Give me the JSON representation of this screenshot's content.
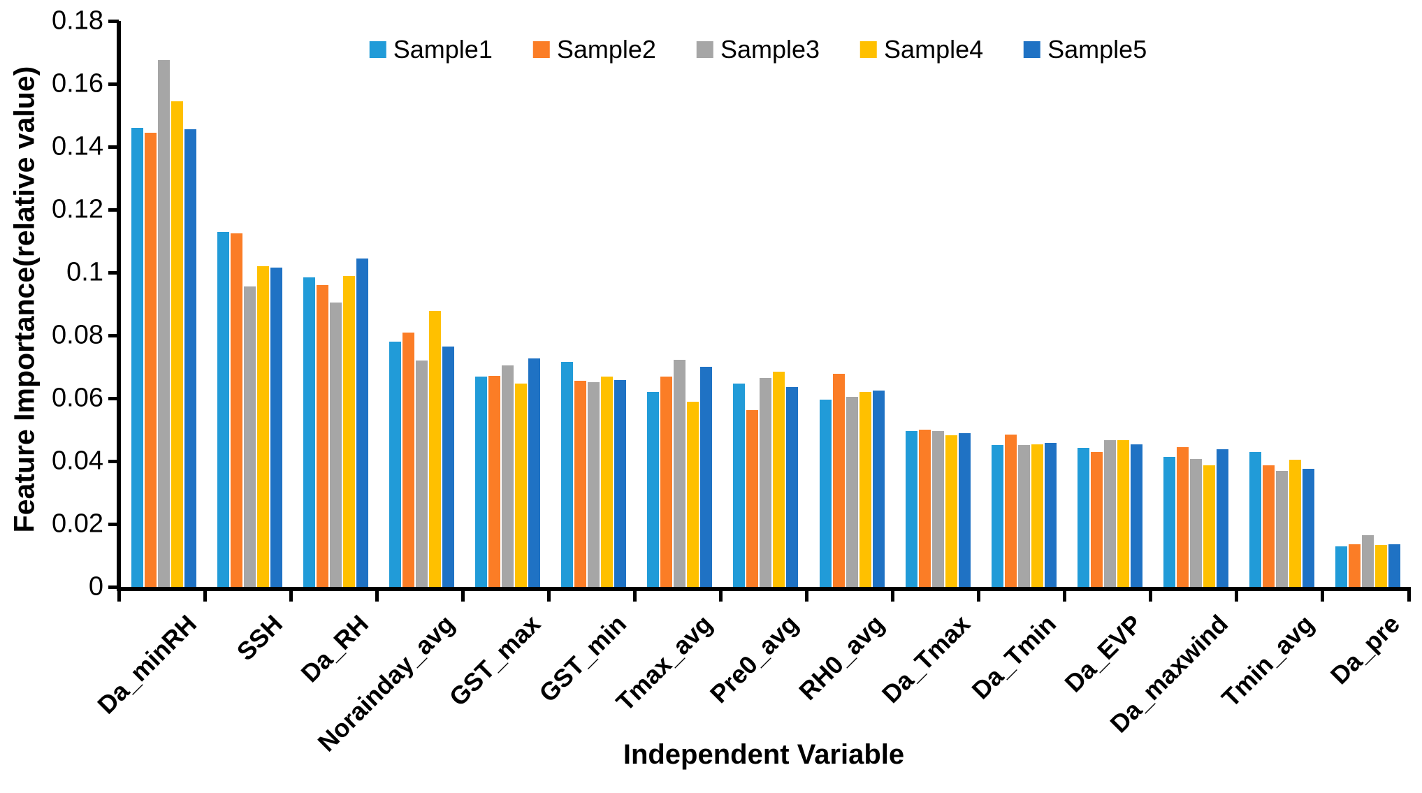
{
  "chart_data": {
    "type": "bar",
    "title": "",
    "xlabel": "Independent Variable",
    "ylabel": "Feature Importance(relative value)",
    "ylim": [
      0,
      0.18
    ],
    "ytick_step": 0.02,
    "yticks": [
      "0",
      "0.02",
      "0.04",
      "0.06",
      "0.08",
      "0.1",
      "0.12",
      "0.14",
      "0.16",
      "0.18"
    ],
    "grid": false,
    "legend_position": "top-center",
    "categories": [
      "Da_minRH",
      "SSH",
      "Da_RH",
      "Norainday_avg",
      "GST_max",
      "GST_min",
      "Tmax_avg",
      "Pre0_avg",
      "RH0_avg",
      "Da_Tmax",
      "Da_Tmin",
      "Da_EVP",
      "Da_maxwind",
      "Tmin_avg",
      "Da_pre"
    ],
    "series": [
      {
        "name": "Sample1",
        "color": "#219BD8",
        "values": [
          0.146,
          0.1128,
          0.0985,
          0.078,
          0.067,
          0.0715,
          0.062,
          0.0646,
          0.0595,
          0.0495,
          0.0452,
          0.0443,
          0.0413,
          0.0428,
          0.013
        ]
      },
      {
        "name": "Sample2",
        "color": "#FB7D26",
        "values": [
          0.1445,
          0.1125,
          0.096,
          0.081,
          0.0672,
          0.0655,
          0.0668,
          0.0562,
          0.0677,
          0.0501,
          0.0484,
          0.043,
          0.0444,
          0.0386,
          0.0136
        ]
      },
      {
        "name": "Sample3",
        "color": "#A6A6A6",
        "values": [
          0.1675,
          0.0955,
          0.0905,
          0.072,
          0.0705,
          0.0652,
          0.0722,
          0.0664,
          0.0605,
          0.0495,
          0.0451,
          0.0467,
          0.0407,
          0.037,
          0.0164
        ]
      },
      {
        "name": "Sample4",
        "color": "#FFC000",
        "values": [
          0.1545,
          0.102,
          0.099,
          0.0877,
          0.0647,
          0.0668,
          0.0588,
          0.0684,
          0.062,
          0.0482,
          0.0453,
          0.0467,
          0.0386,
          0.0404,
          0.0133
        ]
      },
      {
        "name": "Sample5",
        "color": "#1F72C4",
        "values": [
          0.1455,
          0.1015,
          0.1045,
          0.0765,
          0.0727,
          0.0658,
          0.07,
          0.0635,
          0.0625,
          0.0488,
          0.0458,
          0.0453,
          0.0438,
          0.0375,
          0.0136
        ]
      }
    ]
  },
  "colors": {
    "axis": "#000000",
    "background": "#FFFFFF"
  }
}
